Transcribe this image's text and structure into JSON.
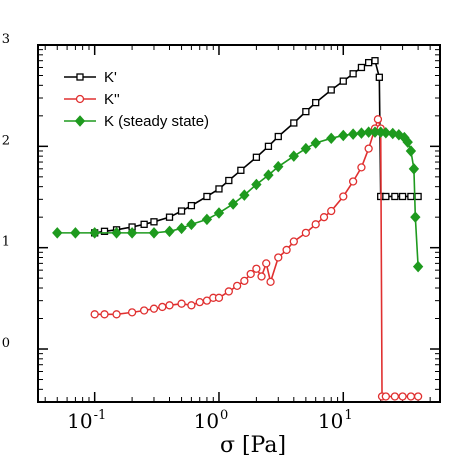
{
  "chart_data": {
    "type": "line",
    "title": "",
    "xlabel": "σ [Pa]",
    "ylabel": "",
    "x_scale": "log",
    "y_scale": "log",
    "xlim": [
      0.035,
      60
    ],
    "ylim": [
      0.3,
      1000
    ],
    "grid": false,
    "legend_position": "top-left",
    "x_ticks": [
      {
        "value": 0.1,
        "base": "10",
        "exp": "-1"
      },
      {
        "value": 1,
        "base": "10",
        "exp": "0"
      },
      {
        "value": 10,
        "base": "10",
        "exp": "1"
      }
    ],
    "y_ticks": [
      {
        "value": 1,
        "base": "10",
        "exp": "0"
      },
      {
        "value": 10,
        "base": "10",
        "exp": "1"
      },
      {
        "value": 100,
        "base": "10",
        "exp": "2"
      },
      {
        "value": 1000,
        "base": "10",
        "exp": "3"
      }
    ],
    "series": [
      {
        "name": "K'",
        "color": "#000000",
        "marker": "square",
        "x": [
          0.1,
          0.12,
          0.15,
          0.2,
          0.25,
          0.3,
          0.4,
          0.5,
          0.6,
          0.8,
          1.0,
          1.2,
          1.5,
          2.0,
          2.5,
          3.0,
          4.0,
          5.0,
          6.0,
          8.0,
          10.0,
          12.0,
          14.0,
          16.0,
          18.0,
          19.5,
          20.0,
          22.0,
          26.0,
          30.0,
          35.0,
          40.0
        ],
        "y": [
          14,
          14.5,
          15,
          16,
          17,
          18,
          20,
          23,
          26,
          32,
          38,
          46,
          58,
          78,
          100,
          125,
          170,
          220,
          270,
          360,
          440,
          520,
          600,
          670,
          700,
          480,
          32,
          32,
          32,
          32,
          32,
          32
        ]
      },
      {
        "name": "K''",
        "color": "#e03030",
        "marker": "circle",
        "x": [
          0.1,
          0.12,
          0.15,
          0.2,
          0.25,
          0.3,
          0.35,
          0.4,
          0.5,
          0.6,
          0.7,
          0.8,
          0.9,
          1.0,
          1.2,
          1.4,
          1.6,
          1.8,
          2.0,
          2.2,
          2.4,
          2.6,
          3.0,
          3.5,
          4.0,
          5.0,
          6.0,
          7.0,
          8.0,
          10.0,
          12.0,
          14.0,
          16.0,
          18.0,
          19.0,
          20.0,
          20.5,
          22.0,
          26.0,
          30.0,
          35.0,
          40.0
        ],
        "y": [
          2.2,
          2.2,
          2.2,
          2.3,
          2.4,
          2.5,
          2.6,
          2.7,
          2.8,
          2.7,
          2.9,
          3.0,
          3.2,
          3.2,
          3.7,
          4.2,
          4.7,
          5.5,
          6.2,
          5.2,
          7.0,
          4.6,
          8.0,
          9.5,
          11.5,
          14,
          17,
          20,
          23,
          32,
          45,
          62,
          95,
          150,
          185,
          150,
          0.34,
          0.34,
          0.34,
          0.34,
          0.34,
          0.34
        ]
      },
      {
        "name": "K (steady state)",
        "color": "#1e9a1e",
        "marker": "diamond",
        "x": [
          0.05,
          0.07,
          0.1,
          0.15,
          0.2,
          0.3,
          0.4,
          0.5,
          0.6,
          0.8,
          1.0,
          1.3,
          1.6,
          2.0,
          2.5,
          3.0,
          4.0,
          5.0,
          6.0,
          8.0,
          10.0,
          12.0,
          14.0,
          16.0,
          18.0,
          20.0,
          22.0,
          25.0,
          28.0,
          31.0,
          33.0,
          35.0,
          37.0,
          38.0,
          40.0
        ],
        "y": [
          14,
          14,
          14,
          14,
          14,
          14,
          14.5,
          15.5,
          17,
          19,
          22,
          27,
          33,
          42,
          52,
          63,
          80,
          95,
          108,
          120,
          128,
          132,
          135,
          138,
          138,
          138,
          136,
          134,
          130,
          122,
          110,
          90,
          60,
          20,
          6.5
        ]
      }
    ]
  }
}
